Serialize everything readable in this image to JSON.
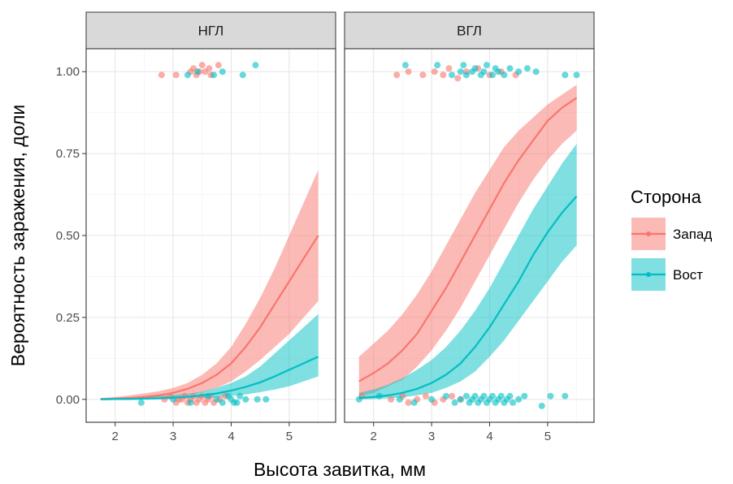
{
  "chart_data": {
    "type": "line",
    "xlabel": "Высота завитка, мм",
    "ylabel": "Вероятность заражения, доли",
    "xlim": [
      1.5,
      5.8
    ],
    "ylim": [
      -0.07,
      1.07
    ],
    "x_ticks": [
      2,
      3,
      4,
      5
    ],
    "x_tick_labels": [
      "2",
      "3",
      "4",
      "5"
    ],
    "y_ticks": [
      0,
      0.25,
      0.5,
      0.75,
      1
    ],
    "y_tick_labels": [
      "0.00",
      "0.25",
      "0.50",
      "0.75",
      "1.00"
    ],
    "grid": true,
    "legend": {
      "title": "Сторона",
      "position": "right",
      "entries": [
        {
          "label": "Запад",
          "color": "#F8766D"
        },
        {
          "label": "Вост",
          "color": "#00BFC4"
        }
      ]
    },
    "panels": [
      {
        "strip": "НГЛ",
        "series": [
          {
            "name": "Запад",
            "color": "#F8766D",
            "x": [
              1.75,
              2.0,
              2.25,
              2.5,
              2.75,
              3.0,
              3.25,
              3.5,
              3.75,
              4.0,
              4.25,
              4.5,
              4.75,
              5.0,
              5.25,
              5.5
            ],
            "y": [
              0.001,
              0.002,
              0.004,
              0.007,
              0.012,
              0.02,
              0.032,
              0.05,
              0.075,
              0.11,
              0.16,
              0.22,
              0.29,
              0.36,
              0.43,
              0.5
            ],
            "lower": [
              0.0,
              0.0,
              0.001,
              0.002,
              0.004,
              0.008,
              0.013,
              0.022,
              0.035,
              0.055,
              0.085,
              0.12,
              0.16,
              0.2,
              0.25,
              0.3
            ],
            "upper": [
              0.004,
              0.007,
              0.012,
              0.018,
              0.025,
              0.035,
              0.05,
              0.075,
              0.11,
              0.16,
              0.23,
              0.31,
              0.4,
              0.5,
              0.6,
              0.7
            ]
          },
          {
            "name": "Вост",
            "color": "#00BFC4",
            "x": [
              1.75,
              2.0,
              2.25,
              2.5,
              2.75,
              3.0,
              3.25,
              3.5,
              3.75,
              4.0,
              4.25,
              4.5,
              4.75,
              5.0,
              5.25,
              5.5
            ],
            "y": [
              0.0,
              0.001,
              0.001,
              0.002,
              0.003,
              0.005,
              0.008,
              0.012,
              0.018,
              0.027,
              0.038,
              0.052,
              0.07,
              0.09,
              0.11,
              0.13
            ],
            "lower": [
              0.0,
              0.0,
              0.0,
              0.0,
              0.001,
              0.001,
              0.002,
              0.004,
              0.006,
              0.01,
              0.015,
              0.022,
              0.03,
              0.04,
              0.055,
              0.07
            ],
            "upper": [
              0.002,
              0.004,
              0.006,
              0.008,
              0.01,
              0.013,
              0.017,
              0.024,
              0.035,
              0.05,
              0.07,
              0.1,
              0.14,
              0.18,
              0.22,
              0.26
            ]
          }
        ],
        "points": [
          {
            "side": "Запад",
            "x": 2.8,
            "y": 0.99
          },
          {
            "side": "Запад",
            "x": 3.05,
            "y": 0.99
          },
          {
            "side": "Запад",
            "x": 3.3,
            "y": 1.0
          },
          {
            "side": "Запад",
            "x": 3.35,
            "y": 1.01
          },
          {
            "side": "Запад",
            "x": 3.4,
            "y": 0.99
          },
          {
            "side": "Запад",
            "x": 3.45,
            "y": 1.0
          },
          {
            "side": "Запад",
            "x": 3.5,
            "y": 1.02
          },
          {
            "side": "Запад",
            "x": 3.55,
            "y": 1.0
          },
          {
            "side": "Запад",
            "x": 3.62,
            "y": 1.01
          },
          {
            "side": "Запад",
            "x": 3.78,
            "y": 1.02
          },
          {
            "side": "Запад",
            "x": 3.65,
            "y": 0.99
          },
          {
            "side": "Вост",
            "x": 3.25,
            "y": 0.99
          },
          {
            "side": "Вост",
            "x": 3.42,
            "y": 1.0
          },
          {
            "side": "Вост",
            "x": 3.7,
            "y": 0.99
          },
          {
            "side": "Вост",
            "x": 3.85,
            "y": 1.0
          },
          {
            "side": "Вост",
            "x": 4.2,
            "y": 0.99
          },
          {
            "side": "Вост",
            "x": 4.42,
            "y": 1.02
          },
          {
            "side": "Запад",
            "x": 2.85,
            "y": 0.0
          },
          {
            "side": "Запад",
            "x": 2.95,
            "y": 0.01
          },
          {
            "side": "Запад",
            "x": 3.05,
            "y": -0.01
          },
          {
            "side": "Запад",
            "x": 3.1,
            "y": 0.0
          },
          {
            "side": "Запад",
            "x": 3.2,
            "y": 0.01
          },
          {
            "side": "Запад",
            "x": 3.25,
            "y": -0.01
          },
          {
            "side": "Запад",
            "x": 3.3,
            "y": 0.0
          },
          {
            "side": "Запад",
            "x": 3.35,
            "y": 0.01
          },
          {
            "side": "Запад",
            "x": 3.4,
            "y": -0.01
          },
          {
            "side": "Запад",
            "x": 3.45,
            "y": 0.0
          },
          {
            "side": "Запад",
            "x": 3.5,
            "y": 0.01
          },
          {
            "side": "Запад",
            "x": 3.55,
            "y": -0.01
          },
          {
            "side": "Запад",
            "x": 3.6,
            "y": 0.0
          },
          {
            "side": "Запад",
            "x": 3.65,
            "y": 0.01
          },
          {
            "side": "Запад",
            "x": 3.7,
            "y": -0.01
          },
          {
            "side": "Запад",
            "x": 3.8,
            "y": 0.0
          },
          {
            "side": "Запад",
            "x": 3.9,
            "y": 0.01
          },
          {
            "side": "Запад",
            "x": 3.15,
            "y": 0.0
          },
          {
            "side": "Вост",
            "x": 2.45,
            "y": -0.01
          },
          {
            "side": "Вост",
            "x": 3.0,
            "y": 0.0
          },
          {
            "side": "Вост",
            "x": 3.3,
            "y": -0.01
          },
          {
            "side": "Вост",
            "x": 3.6,
            "y": 0.01
          },
          {
            "side": "Вост",
            "x": 3.75,
            "y": 0.0
          },
          {
            "side": "Вост",
            "x": 3.85,
            "y": -0.01
          },
          {
            "side": "Вост",
            "x": 3.95,
            "y": 0.01
          },
          {
            "side": "Вост",
            "x": 4.0,
            "y": 0.0
          },
          {
            "side": "Вост",
            "x": 4.05,
            "y": -0.01
          },
          {
            "side": "Вост",
            "x": 4.15,
            "y": 0.01
          },
          {
            "side": "Вост",
            "x": 4.25,
            "y": 0.0
          },
          {
            "side": "Вост",
            "x": 4.1,
            "y": -0.01
          },
          {
            "side": "Вост",
            "x": 4.45,
            "y": 0.0
          },
          {
            "side": "Вост",
            "x": 4.6,
            "y": 0.0
          }
        ]
      },
      {
        "strip": "ВГЛ",
        "series": [
          {
            "name": "Запад",
            "color": "#F8766D",
            "x": [
              1.75,
              2.0,
              2.25,
              2.5,
              2.75,
              3.0,
              3.25,
              3.5,
              3.75,
              4.0,
              4.25,
              4.5,
              4.75,
              5.0,
              5.25,
              5.5
            ],
            "y": [
              0.055,
              0.08,
              0.11,
              0.15,
              0.2,
              0.27,
              0.34,
              0.42,
              0.5,
              0.58,
              0.66,
              0.73,
              0.79,
              0.85,
              0.89,
              0.92
            ],
            "lower": [
              0.01,
              0.02,
              0.04,
              0.06,
              0.1,
              0.15,
              0.21,
              0.28,
              0.36,
              0.44,
              0.52,
              0.6,
              0.67,
              0.73,
              0.78,
              0.82
            ],
            "upper": [
              0.13,
              0.17,
              0.21,
              0.26,
              0.32,
              0.39,
              0.47,
              0.55,
              0.63,
              0.7,
              0.77,
              0.82,
              0.86,
              0.9,
              0.93,
              0.96
            ]
          },
          {
            "name": "Вост",
            "color": "#00BFC4",
            "x": [
              1.75,
              2.0,
              2.25,
              2.5,
              2.75,
              3.0,
              3.25,
              3.5,
              3.75,
              4.0,
              4.25,
              4.5,
              4.75,
              5.0,
              5.25,
              5.5
            ],
            "y": [
              0.004,
              0.007,
              0.012,
              0.02,
              0.032,
              0.05,
              0.075,
              0.11,
              0.16,
              0.22,
              0.29,
              0.36,
              0.44,
              0.51,
              0.57,
              0.62
            ],
            "lower": [
              0.0,
              0.001,
              0.003,
              0.006,
              0.012,
              0.02,
              0.035,
              0.055,
              0.085,
              0.13,
              0.18,
              0.24,
              0.3,
              0.36,
              0.42,
              0.47
            ],
            "upper": [
              0.02,
              0.03,
              0.045,
              0.065,
              0.09,
              0.12,
              0.16,
              0.21,
              0.27,
              0.34,
              0.42,
              0.5,
              0.58,
              0.65,
              0.72,
              0.78
            ]
          }
        ],
        "points": [
          {
            "side": "Запад",
            "x": 2.4,
            "y": 0.99
          },
          {
            "side": "Запад",
            "x": 2.6,
            "y": 1.0
          },
          {
            "side": "Запад",
            "x": 2.85,
            "y": 0.99
          },
          {
            "side": "Запад",
            "x": 3.05,
            "y": 1.0
          },
          {
            "side": "Запад",
            "x": 3.2,
            "y": 0.99
          },
          {
            "side": "Запад",
            "x": 3.3,
            "y": 1.01
          },
          {
            "side": "Запад",
            "x": 3.45,
            "y": 0.98
          },
          {
            "side": "Запад",
            "x": 3.6,
            "y": 1.0
          },
          {
            "side": "Запад",
            "x": 3.8,
            "y": 1.01
          },
          {
            "side": "Запад",
            "x": 4.0,
            "y": 0.99
          },
          {
            "side": "Запад",
            "x": 4.2,
            "y": 1.0
          },
          {
            "side": "Запад",
            "x": 4.45,
            "y": 0.99
          },
          {
            "side": "Вост",
            "x": 2.55,
            "y": 1.02
          },
          {
            "side": "Вост",
            "x": 3.1,
            "y": 1.02
          },
          {
            "side": "Вост",
            "x": 3.35,
            "y": 0.99
          },
          {
            "side": "Вост",
            "x": 3.5,
            "y": 1.0
          },
          {
            "side": "Вост",
            "x": 3.55,
            "y": 1.02
          },
          {
            "side": "Вост",
            "x": 3.6,
            "y": 0.99
          },
          {
            "side": "Вост",
            "x": 3.7,
            "y": 1.0
          },
          {
            "side": "Вост",
            "x": 3.75,
            "y": 1.01
          },
          {
            "side": "Вост",
            "x": 3.85,
            "y": 0.99
          },
          {
            "side": "Вост",
            "x": 3.9,
            "y": 1.0
          },
          {
            "side": "Вост",
            "x": 3.95,
            "y": 1.02
          },
          {
            "side": "Вост",
            "x": 4.05,
            "y": 0.99
          },
          {
            "side": "Вост",
            "x": 4.1,
            "y": 1.01
          },
          {
            "side": "Вост",
            "x": 4.15,
            "y": 1.0
          },
          {
            "side": "Вост",
            "x": 4.25,
            "y": 0.99
          },
          {
            "side": "Вост",
            "x": 4.35,
            "y": 1.01
          },
          {
            "side": "Вост",
            "x": 4.5,
            "y": 1.0
          },
          {
            "side": "Вост",
            "x": 4.65,
            "y": 1.01
          },
          {
            "side": "Вост",
            "x": 4.8,
            "y": 1.0
          },
          {
            "side": "Вост",
            "x": 5.3,
            "y": 0.99
          },
          {
            "side": "Вост",
            "x": 5.5,
            "y": 0.99
          },
          {
            "side": "Запад",
            "x": 1.8,
            "y": 0.01
          },
          {
            "side": "Запад",
            "x": 2.3,
            "y": 0.0
          },
          {
            "side": "Запад",
            "x": 2.5,
            "y": 0.01
          },
          {
            "side": "Запад",
            "x": 2.6,
            "y": -0.01
          },
          {
            "side": "Запад",
            "x": 2.75,
            "y": 0.0
          },
          {
            "side": "Запад",
            "x": 2.9,
            "y": 0.01
          },
          {
            "side": "Запад",
            "x": 3.05,
            "y": -0.01
          },
          {
            "side": "Запад",
            "x": 3.2,
            "y": 0.0
          },
          {
            "side": "Запад",
            "x": 3.35,
            "y": 0.01
          },
          {
            "side": "Запад",
            "x": 3.5,
            "y": 0.0
          },
          {
            "side": "Вост",
            "x": 1.75,
            "y": 0.0
          },
          {
            "side": "Вост",
            "x": 2.1,
            "y": 0.01
          },
          {
            "side": "Вост",
            "x": 2.45,
            "y": 0.0
          },
          {
            "side": "Вост",
            "x": 2.7,
            "y": -0.01
          },
          {
            "side": "Вост",
            "x": 3.0,
            "y": 0.0
          },
          {
            "side": "Вост",
            "x": 3.25,
            "y": 0.01
          },
          {
            "side": "Вост",
            "x": 3.4,
            "y": -0.01
          },
          {
            "side": "Вост",
            "x": 3.5,
            "y": 0.0
          },
          {
            "side": "Вост",
            "x": 3.6,
            "y": 0.01
          },
          {
            "side": "Вост",
            "x": 3.65,
            "y": -0.01
          },
          {
            "side": "Вост",
            "x": 3.7,
            "y": 0.0
          },
          {
            "side": "Вост",
            "x": 3.75,
            "y": 0.01
          },
          {
            "side": "Вост",
            "x": 3.8,
            "y": -0.01
          },
          {
            "side": "Вост",
            "x": 3.85,
            "y": 0.0
          },
          {
            "side": "Вост",
            "x": 3.9,
            "y": 0.01
          },
          {
            "side": "Вост",
            "x": 3.95,
            "y": -0.01
          },
          {
            "side": "Вост",
            "x": 4.0,
            "y": 0.0
          },
          {
            "side": "Вост",
            "x": 4.05,
            "y": 0.01
          },
          {
            "side": "Вост",
            "x": 4.1,
            "y": -0.01
          },
          {
            "side": "Вост",
            "x": 4.15,
            "y": 0.0
          },
          {
            "side": "Вост",
            "x": 4.2,
            "y": 0.01
          },
          {
            "side": "Вост",
            "x": 4.25,
            "y": -0.01
          },
          {
            "side": "Вост",
            "x": 4.3,
            "y": 0.0
          },
          {
            "side": "Вост",
            "x": 4.35,
            "y": 0.01
          },
          {
            "side": "Вост",
            "x": 4.4,
            "y": -0.01
          },
          {
            "side": "Вост",
            "x": 4.5,
            "y": 0.0
          },
          {
            "side": "Вост",
            "x": 4.6,
            "y": 0.01
          },
          {
            "side": "Вост",
            "x": 4.9,
            "y": -0.02
          },
          {
            "side": "Вост",
            "x": 5.05,
            "y": 0.01
          },
          {
            "side": "Вост",
            "x": 5.3,
            "y": 0.01
          }
        ]
      }
    ]
  }
}
